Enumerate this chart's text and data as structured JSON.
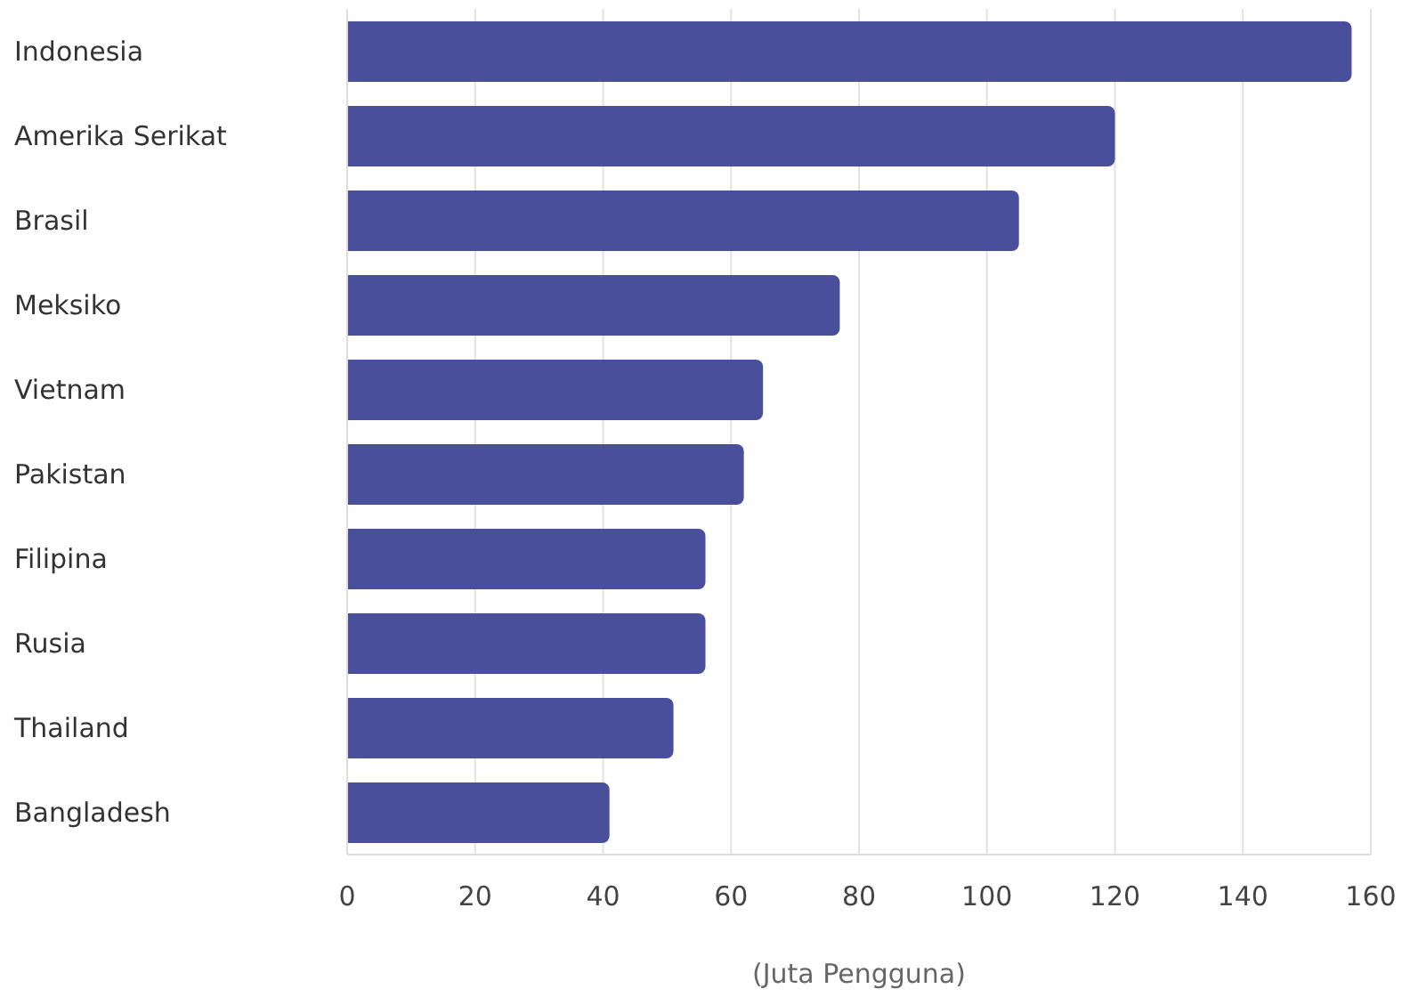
{
  "chart_data": {
    "type": "bar",
    "orientation": "horizontal",
    "xlabel": "(Juta Pengguna)",
    "categories": [
      "Indonesia",
      "Amerika Serikat",
      "Brasil",
      "Meksiko",
      "Vietnam",
      "Pakistan",
      "Filipina",
      "Rusia",
      "Thailand",
      "Bangladesh"
    ],
    "values": [
      157,
      120,
      105,
      77,
      65,
      62,
      56,
      56,
      51,
      41
    ],
    "color": "#4a4f9c",
    "xlim": [
      0,
      160
    ],
    "xticks": [
      0,
      20,
      40,
      60,
      80,
      100,
      120,
      140,
      160
    ],
    "grid": "x",
    "legend": false
  }
}
